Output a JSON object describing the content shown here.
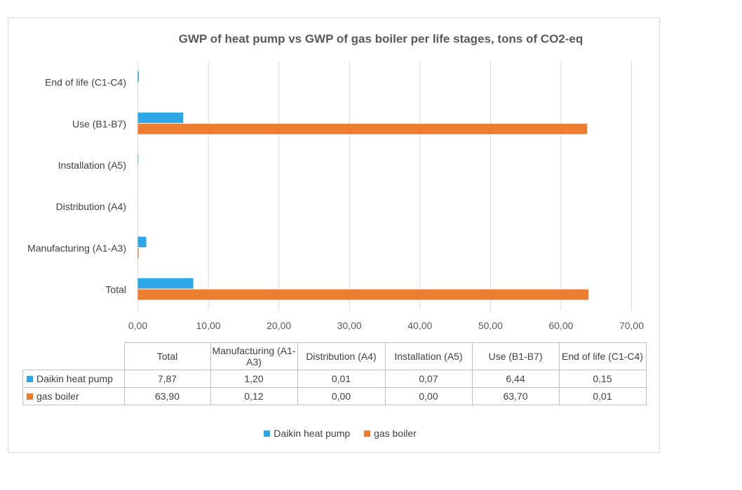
{
  "chart_data": {
    "type": "bar",
    "orientation": "horizontal",
    "title": "GWP of heat pump vs GWP of gas boiler per life stages, tons of CO2-eq",
    "categories": [
      "Total",
      "Manufacturing (A1-A3)",
      "Distribution (A4)",
      "Installation (A5)",
      "Use (B1-B7)",
      "End of life (C1-C4)"
    ],
    "table_headers": [
      "Total",
      "Manufacturing (A1-A3)",
      "Distribution (A4)",
      "Installation (A5)",
      "Use (B1-B7)",
      "End of life (C1-C4)"
    ],
    "series": [
      {
        "name": "Daikin heat pump",
        "color": "#2da8e6",
        "values": [
          7.87,
          1.2,
          0.01,
          0.07,
          6.44,
          0.15
        ],
        "labels": [
          "7,87",
          "1,20",
          "0,01",
          "0,07",
          "6,44",
          "0,15"
        ]
      },
      {
        "name": "gas boiler",
        "color": "#ed7d31",
        "values": [
          63.9,
          0.12,
          0.0,
          0.0,
          63.7,
          0.01
        ],
        "labels": [
          "63,90",
          "0,12",
          "0,00",
          "0,00",
          "63,70",
          "0,01"
        ]
      }
    ],
    "xlim": [
      0,
      70
    ],
    "xticks": [
      0,
      10,
      20,
      30,
      40,
      50,
      60,
      70
    ],
    "xtick_labels": [
      "0,00",
      "10,00",
      "20,00",
      "30,00",
      "40,00",
      "50,00",
      "60,00",
      "70,00"
    ],
    "grid": true,
    "legend": "bottom",
    "data_table": true
  }
}
